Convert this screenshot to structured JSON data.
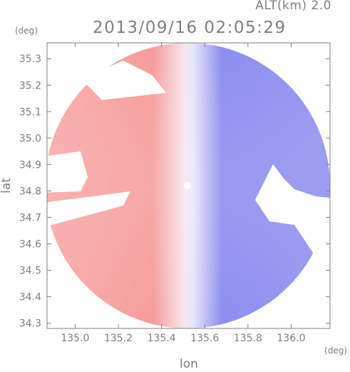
{
  "header": {
    "altitude_label": "ALT(km) 2.0",
    "datetime": "2013/09/16 02:05:29"
  },
  "axes": {
    "x_unit": "(deg)",
    "y_unit": "(deg)",
    "x_title": "lon",
    "y_title": "lat"
  },
  "colors": {
    "frame": "#7f7f7f",
    "approaching": "#7a7aee",
    "receding": "#f7a0a0",
    "neutral": "#f2f2fa"
  },
  "chart_data": {
    "type": "heatmap",
    "title": "2013/09/16 02:05:29",
    "subtitle": "ALT(km) 2.0",
    "xlabel": "lon",
    "ylabel": "lat",
    "x_unit": "(deg)",
    "y_unit": "(deg)",
    "xlim": [
      134.87,
      136.18
    ],
    "ylim": [
      34.28,
      35.36
    ],
    "x_ticks": [
      135.0,
      135.2,
      135.4,
      135.6,
      135.8,
      136.0
    ],
    "y_ticks": [
      34.3,
      34.4,
      34.5,
      34.6,
      34.7,
      34.8,
      34.9,
      35.0,
      35.1,
      35.2,
      35.3
    ],
    "x_tick_labels": [
      "135.0",
      "135.2",
      "135.4",
      "135.6",
      "135.8",
      "136.0"
    ],
    "y_tick_labels": [
      "34.3",
      "34.4",
      "34.5",
      "34.6",
      "34.7",
      "34.8",
      "34.9",
      "35.0",
      "35.1",
      "35.2",
      "35.3"
    ],
    "radar_center": {
      "lon": 135.52,
      "lat": 34.82
    },
    "field": "Doppler velocity (west sector red = receding, east sector blue = approaching)",
    "grid": false,
    "legend": "none"
  }
}
